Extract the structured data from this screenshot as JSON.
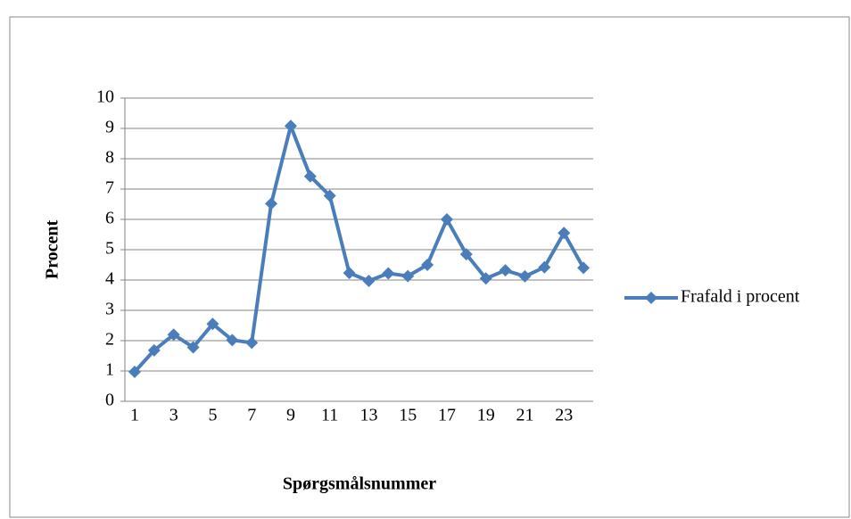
{
  "chart_data": {
    "type": "line",
    "xlabel": "Spørgsmålsnummer",
    "ylabel": "Procent",
    "categories": [
      1,
      null,
      3,
      null,
      5,
      null,
      7,
      null,
      9,
      null,
      11,
      null,
      13,
      null,
      15,
      null,
      17,
      null,
      19,
      null,
      21,
      null,
      23,
      null
    ],
    "series": [
      {
        "name": "Frafald i procent",
        "color": "#4a7ebb",
        "values": [
          0.97,
          1.68,
          2.2,
          1.78,
          2.55,
          2.02,
          1.93,
          6.52,
          9.08,
          7.42,
          6.78,
          4.23,
          3.97,
          4.22,
          4.13,
          4.5,
          6.0,
          4.85,
          4.05,
          4.32,
          4.12,
          4.42,
          5.55,
          4.4
        ]
      }
    ],
    "ylim": [
      0,
      10
    ],
    "yticks": [
      0,
      1,
      2,
      3,
      4,
      5,
      6,
      7,
      8,
      9,
      10
    ],
    "grid": true,
    "legend": "right"
  }
}
